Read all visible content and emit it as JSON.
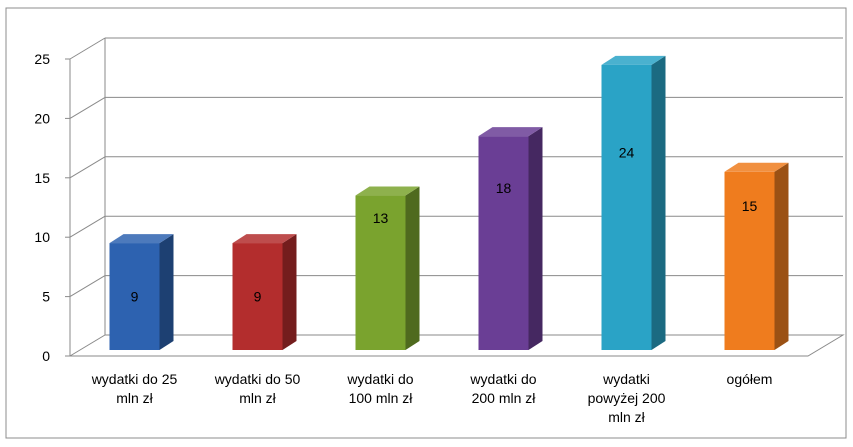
{
  "chart_data": {
    "type": "bar",
    "categories": [
      [
        "wydatki do 25",
        "mln zł"
      ],
      [
        "wydatki do 50",
        "mln zł"
      ],
      [
        "wydatki do",
        "100 mln zł"
      ],
      [
        "wydatki do",
        "200 mln zł"
      ],
      [
        "wydatki",
        "powyżej 200",
        "mln zł"
      ],
      [
        "ogółem"
      ]
    ],
    "values": [
      9,
      9,
      13,
      18,
      24,
      15
    ],
    "data_labels": [
      "9",
      "9",
      "13",
      "18",
      "24",
      "15"
    ],
    "colors": [
      "#2d62b0",
      "#b32d2d",
      "#7aa32e",
      "#6a3e95",
      "#2aa3c6",
      "#ef7c1e"
    ],
    "yticks": [
      "0",
      "5",
      "10",
      "15",
      "20",
      "25"
    ],
    "ylim": [
      0,
      25
    ],
    "grid": true,
    "style": "3d"
  }
}
